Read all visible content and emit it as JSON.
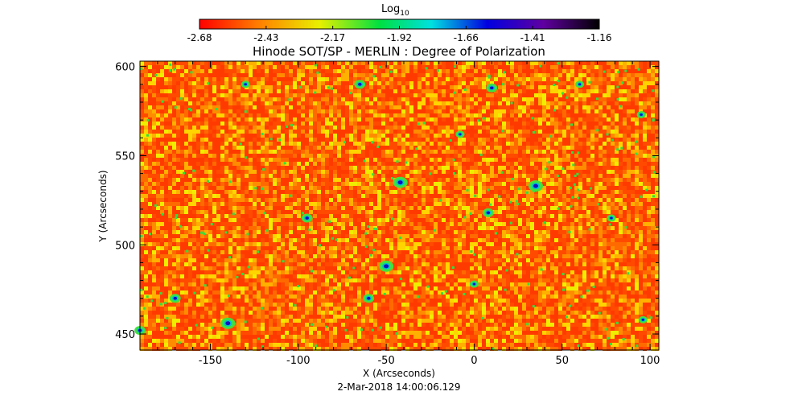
{
  "colorbar": {
    "label": "Log",
    "label_subscript": "10",
    "ticks": [
      "-2.68",
      "-2.43",
      "-2.17",
      "-1.92",
      "-1.66",
      "-1.41",
      "-1.16"
    ],
    "colormap": "rainbow (red → yellow → green → cyan → blue → purple → black)"
  },
  "chart_data": {
    "type": "heatmap",
    "title": "Hinode SOT/SP - MERLIN : Degree of Polarization",
    "xlabel": "X (Arcseconds)",
    "ylabel": "Y (Arcseconds)",
    "xlim": [
      -190,
      105
    ],
    "ylim": [
      441,
      603
    ],
    "xticks": [
      -150,
      -100,
      -50,
      0,
      50,
      100
    ],
    "yticks": [
      450,
      500,
      550,
      600
    ],
    "xtick_labels": [
      "-150",
      "-100",
      "-50",
      "0",
      "50",
      "100"
    ],
    "ytick_labels": [
      "450",
      "500",
      "550",
      "600"
    ],
    "value_range": [
      -2.68,
      -1.16
    ],
    "dominant_value_range": [
      -2.68,
      -2.3
    ],
    "concentrations": [
      {
        "x": 35,
        "y": 533,
        "level": "high"
      },
      {
        "x": -50,
        "y": 488,
        "level": "high"
      },
      {
        "x": -42,
        "y": 535,
        "level": "high"
      },
      {
        "x": 8,
        "y": 518,
        "level": "medium"
      },
      {
        "x": -140,
        "y": 456,
        "level": "high"
      },
      {
        "x": -65,
        "y": 590,
        "level": "medium"
      },
      {
        "x": 10,
        "y": 588,
        "level": "medium"
      },
      {
        "x": -170,
        "y": 470,
        "level": "medium"
      },
      {
        "x": -95,
        "y": 515,
        "level": "medium"
      },
      {
        "x": 95,
        "y": 573,
        "level": "low"
      },
      {
        "x": 78,
        "y": 515,
        "level": "low"
      },
      {
        "x": -8,
        "y": 562,
        "level": "low"
      },
      {
        "x": -190,
        "y": 452,
        "level": "medium"
      },
      {
        "x": 60,
        "y": 590,
        "level": "low"
      },
      {
        "x": -130,
        "y": 590,
        "level": "low"
      },
      {
        "x": -60,
        "y": 470,
        "level": "medium"
      },
      {
        "x": 0,
        "y": 478,
        "level": "low"
      },
      {
        "x": 96,
        "y": 458,
        "level": "low"
      }
    ]
  },
  "footer": {
    "timestamp": "2-Mar-2018 14:00:06.129"
  }
}
